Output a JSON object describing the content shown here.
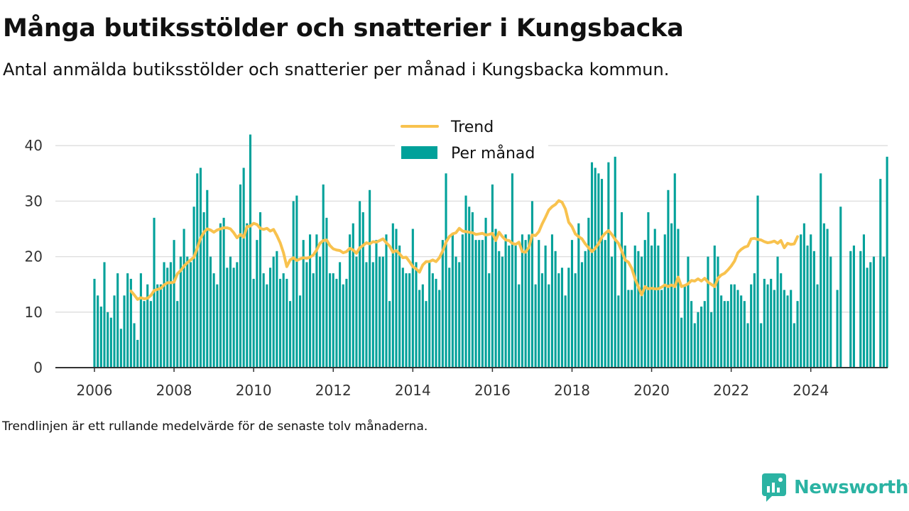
{
  "title": "Många butiksstölder och snatterier i Kungsbacka",
  "subtitle": "Antal anmälda butiksstölder och snatterier per månad i Kungsbacka kommun.",
  "footnote": "Trendlinjen är ett rullande medelvärde för de senaste tolv månaderna.",
  "brand": {
    "name": "Newsworthy",
    "icon": "newsworthy-logo-icon"
  },
  "colors": {
    "bars": "#00a19a",
    "trend": "#f8c24e",
    "grid": "#dddddd",
    "axis": "#333333",
    "text": "#111111",
    "brand": "#2bb3a3"
  },
  "chart_data": {
    "type": "bar",
    "x_start": "2006-01",
    "x_end": "2024-11",
    "ylim": [
      0,
      45
    ],
    "yticks": [
      0,
      10,
      20,
      30,
      40
    ],
    "xticks": [
      "2006",
      "2008",
      "2010",
      "2012",
      "2014",
      "2016",
      "2018",
      "2020",
      "2022",
      "2024"
    ],
    "grid": true,
    "legend_position": "top-center",
    "series": [
      {
        "name": "Per månad",
        "type": "bar",
        "values": [
          16,
          13,
          11,
          19,
          10,
          9,
          13,
          17,
          7,
          13,
          17,
          16,
          8,
          5,
          17,
          12,
          15,
          12,
          27,
          15,
          15,
          19,
          18,
          19,
          23,
          12,
          20,
          25,
          20,
          19,
          29,
          35,
          36,
          28,
          32,
          20,
          17,
          15,
          26,
          27,
          18,
          20,
          18,
          19,
          33,
          36,
          26,
          42,
          16,
          23,
          28,
          17,
          15,
          18,
          20,
          21,
          16,
          17,
          16,
          12,
          30,
          31,
          13,
          23,
          19,
          24,
          17,
          24,
          20,
          33,
          27,
          17,
          17,
          16,
          19,
          15,
          16,
          24,
          26,
          20,
          30,
          28,
          19,
          32,
          19,
          23,
          20,
          20,
          24,
          12,
          26,
          25,
          22,
          18,
          17,
          17,
          25,
          19,
          14,
          15,
          12,
          19,
          17,
          16,
          14,
          23,
          35,
          18,
          24,
          20,
          19,
          24,
          31,
          29,
          28,
          23,
          23,
          23,
          27,
          17,
          33,
          25,
          21,
          20,
          24,
          22,
          35,
          22,
          15,
          24,
          23,
          24,
          30,
          15,
          23,
          17,
          22,
          15,
          24,
          21,
          17,
          18,
          13,
          18,
          23,
          17,
          26,
          19,
          21,
          27,
          37,
          36,
          35,
          34,
          23,
          37,
          20,
          38,
          13,
          28,
          22,
          14,
          14,
          22,
          21,
          20,
          23,
          28,
          22,
          25,
          22,
          14,
          24,
          32,
          26,
          35,
          25,
          9,
          15,
          20,
          12,
          8,
          10,
          11,
          12,
          20,
          10,
          22,
          20,
          13,
          12,
          12,
          15,
          15,
          14,
          13,
          12,
          8,
          15,
          17,
          31,
          8,
          16,
          15,
          16,
          14,
          20,
          17,
          14,
          13,
          14,
          8,
          12,
          24,
          26,
          22,
          24,
          21,
          15,
          35,
          26,
          25,
          20,
          null,
          14,
          29,
          null,
          null,
          21,
          22,
          null,
          21,
          24,
          18,
          19,
          20,
          null,
          34,
          20,
          38
        ]
      },
      {
        "name": "Trend",
        "type": "line",
        "start_index": 11,
        "values": [
          13.8,
          13.1,
          12.3,
          12.6,
          12.4,
          12.5,
          13.0,
          13.9,
          14.1,
          14.3,
          14.9,
          15.3,
          15.3,
          15.4,
          16.9,
          17.5,
          18.3,
          18.9,
          19.4,
          19.9,
          21.5,
          23.3,
          24.4,
          25.0,
          24.8,
          24.4,
          24.8,
          25.0,
          25.2,
          25.2,
          25.0,
          24.3,
          23.4,
          24.0,
          23.5,
          25.4,
          25.5,
          26.0,
          25.8,
          25.1,
          24.9,
          25.1,
          24.6,
          24.9,
          23.8,
          22.5,
          20.7,
          18.2,
          19.4,
          19.8,
          19.3,
          19.6,
          19.8,
          19.7,
          19.9,
          20.3,
          21.2,
          22.4,
          22.9,
          23.0,
          22.0,
          21.4,
          21.2,
          21.1,
          20.7,
          20.9,
          21.5,
          21.2,
          20.6,
          21.6,
          22.0,
          22.5,
          22.3,
          22.7,
          22.6,
          22.9,
          23.2,
          22.5,
          21.9,
          20.8,
          21.1,
          20.5,
          19.8,
          19.9,
          19.1,
          18.2,
          17.8,
          17.2,
          18.5,
          19.1,
          19.1,
          19.4,
          19.1,
          19.8,
          21.0,
          22.6,
          23.6,
          24.1,
          24.3,
          25.1,
          24.6,
          24.5,
          24.4,
          24.3,
          24.0,
          24.1,
          24.2,
          23.9,
          24.0,
          24.2,
          22.9,
          24.4,
          23.6,
          23.0,
          22.9,
          22.4,
          22.2,
          22.6,
          20.9,
          20.8,
          21.7,
          23.9,
          23.8,
          24.5,
          25.9,
          27.1,
          28.4,
          29.0,
          29.4,
          30.1,
          29.8,
          28.6,
          26.2,
          25.4,
          24.1,
          23.6,
          23.2,
          22.3,
          21.6,
          20.9,
          21.5,
          22.3,
          23.5,
          24.2,
          24.7,
          24.0,
          23.1,
          22.4,
          21.0,
          19.4,
          19.0,
          17.9,
          16.0,
          14.6,
          13.1,
          14.6,
          14.2,
          14.3,
          14.2,
          14.2,
          14.5,
          14.9,
          14.6,
          14.9,
          14.6,
          16.3,
          14.6,
          14.8,
          15.1,
          15.7,
          15.6,
          16.0,
          15.6,
          16.1,
          15.4,
          15.0,
          14.6,
          16.1,
          16.7,
          17.0,
          17.6,
          18.3,
          19.2,
          20.7,
          21.3,
          21.7,
          21.9,
          23.2,
          23.3,
          23.1,
          23.0,
          22.7,
          22.5,
          22.6,
          22.8,
          22.4,
          22.9,
          21.6,
          22.4,
          22.2,
          22.3,
          23.6
        ]
      }
    ]
  }
}
